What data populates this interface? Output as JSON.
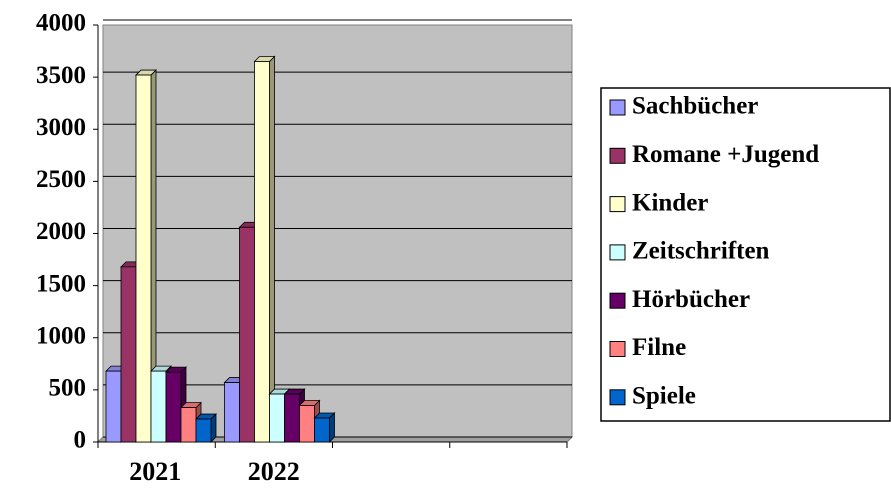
{
  "chart_data": {
    "type": "bar",
    "categories": [
      "2021",
      "2022",
      null,
      null
    ],
    "series": [
      {
        "name": "Sachbücher",
        "color": "#9999ff",
        "values": [
          680,
          570,
          null,
          null
        ]
      },
      {
        "name": "Romane +Jugend",
        "color": "#993366",
        "values": [
          1680,
          2060,
          null,
          null
        ]
      },
      {
        "name": "Kinder",
        "color": "#ffffcc",
        "values": [
          3520,
          3650,
          null,
          null
        ]
      },
      {
        "name": "Zeitschriften",
        "color": "#ccffff",
        "values": [
          680,
          460,
          null,
          null
        ]
      },
      {
        "name": "Hörbücher",
        "color": "#660066",
        "values": [
          670,
          460,
          null,
          null
        ]
      },
      {
        "name": "Filne",
        "color": "#ff8080",
        "values": [
          330,
          350,
          null,
          null
        ]
      },
      {
        "name": "Spiele",
        "color": "#0066cc",
        "values": [
          220,
          230,
          null,
          null
        ]
      }
    ],
    "ylim": [
      0,
      4000
    ],
    "yticks": [
      0,
      500,
      1000,
      1500,
      2000,
      2500,
      3000,
      3500,
      4000
    ],
    "grid": true,
    "legend": "right",
    "background": "#c0c0c0"
  }
}
